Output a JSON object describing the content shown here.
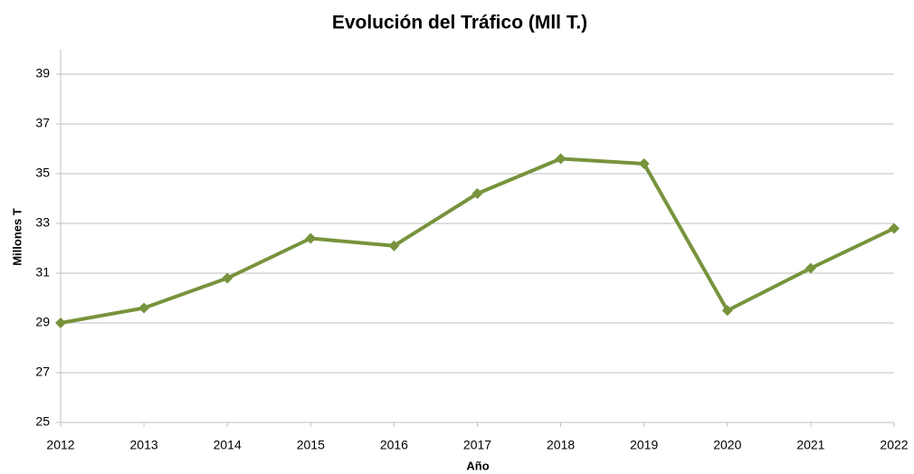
{
  "chart_data": {
    "type": "line",
    "title": "Evolución del Tráfico (Mll T.)",
    "x_label": "Año",
    "y_label": "Millones T",
    "x": [
      2012,
      2013,
      2014,
      2015,
      2016,
      2017,
      2018,
      2019,
      2020,
      2021,
      2022
    ],
    "series": [
      {
        "name": "Tráfico",
        "color": "#77933c",
        "values": [
          29.0,
          29.6,
          30.8,
          32.4,
          32.1,
          34.2,
          35.6,
          35.4,
          29.5,
          31.2,
          32.8
        ]
      }
    ],
    "xlim": [
      2012,
      2022
    ],
    "xticks": [
      2012,
      2013,
      2014,
      2015,
      2016,
      2017,
      2018,
      2019,
      2020,
      2021,
      2022
    ],
    "ylim": [
      25,
      40
    ],
    "yticks": [
      25,
      27,
      29,
      31,
      33,
      35,
      37,
      39
    ],
    "grid": true,
    "legend": false
  }
}
